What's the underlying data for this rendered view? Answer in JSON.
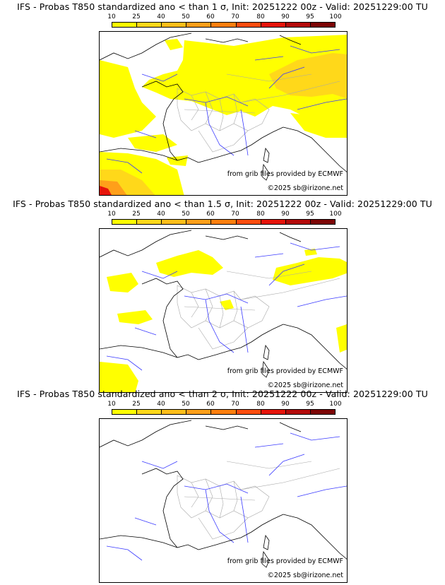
{
  "colors": {
    "c10": "#ffff00",
    "c25": "#ffd81a",
    "c40": "#ffbe1a",
    "c50": "#ff9f1a",
    "c60": "#ff7f0e",
    "c70": "#ff4d0e",
    "c80": "#e6140a",
    "c90": "#b40a0a",
    "c95": "#7d0505",
    "c100": "#4a0000",
    "coast": "#000000",
    "rivers": "#3a3aff",
    "borders": "#a8a8a8"
  },
  "scale_labels": [
    "10",
    "25",
    "40",
    "50",
    "60",
    "70",
    "80",
    "90",
    "95",
    "100"
  ],
  "credits": {
    "source": "from grib files provided by ECMWF",
    "copyright": "©2025 sb@irizone.net"
  },
  "panels": [
    {
      "title": "IFS - Probas T850  standardized ano < than 1 σ, Init: 20251222 00z - Valid: 20251229:00 TU",
      "threshold": "1 σ"
    },
    {
      "title": "IFS - Probas T850  standardized ano < than 1.5 σ, Init: 20251222 00z - Valid: 20251229:00 TU",
      "threshold": "1.5 σ"
    },
    {
      "title": "IFS - Probas T850  standardized ano < than 2 σ, Init: 20251222 00z - Valid: 20251229:00 TU",
      "threshold": "2 σ"
    }
  ]
}
